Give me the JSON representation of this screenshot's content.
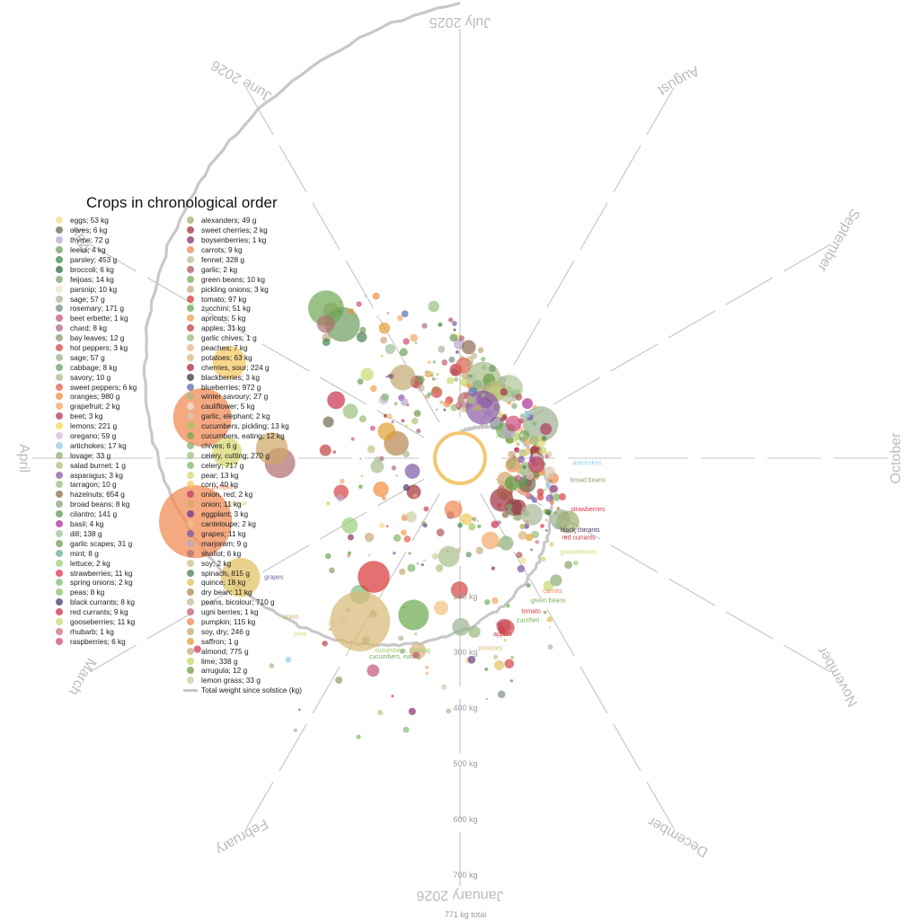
{
  "chart_data": {
    "type": "scatter",
    "title": "Crops in chronological order",
    "subtitle": "",
    "radial_axis_labels": [
      "200 kg",
      "300 kg",
      "400 kg",
      "500 kg",
      "600 kg",
      "700 kg",
      "771 kg total"
    ],
    "months": [
      "July 2025",
      "August",
      "September",
      "October",
      "November",
      "December",
      "January 2026",
      "February",
      "March",
      "April",
      "May",
      "June 2026"
    ],
    "legend_line_label": "Total weight since solstice (kg)",
    "cumulative_total_kg": 771,
    "legend": [
      {
        "label": "eggs; 53 kg",
        "color": "#f7dc8f"
      },
      {
        "label": "olives; 6 kg",
        "color": "#6e6a56"
      },
      {
        "label": "thyme; 72 g",
        "color": "#b9a8d2"
      },
      {
        "label": "leeks; 4 kg",
        "color": "#6e9d5e"
      },
      {
        "label": "parsley; 453 g",
        "color": "#3f8a48"
      },
      {
        "label": "broccoli; 6 kg",
        "color": "#2f6b3d"
      },
      {
        "label": "feijoas; 14 kg",
        "color": "#7ca56c"
      },
      {
        "label": "parsnip; 10 kg",
        "color": "#ece6cd"
      },
      {
        "label": "sage; 57 g",
        "color": "#a8b89a"
      },
      {
        "label": "rosemary; 171 g",
        "color": "#7c8f8a"
      },
      {
        "label": "beet erbette; 1 kg",
        "color": "#c4587a"
      },
      {
        "label": "chard; 8 kg",
        "color": "#b06a8a"
      },
      {
        "label": "bay leaves; 12 g",
        "color": "#8a9b6e"
      },
      {
        "label": "hot peppers; 3 kg",
        "color": "#d64545"
      },
      {
        "label": "sage; 57 g",
        "color": "#9bb090"
      },
      {
        "label": "cabbage; 8 kg",
        "color": "#6e9d6e"
      },
      {
        "label": "savory; 10 g",
        "color": "#a6bd8c"
      },
      {
        "label": "sweet peppers; 6 kg",
        "color": "#e0604f"
      },
      {
        "label": "oranges; 980 g",
        "color": "#f08c3c"
      },
      {
        "label": "grapefruit; 2 kg",
        "color": "#f4a866"
      },
      {
        "label": "beet; 3 kg",
        "color": "#b03a5e"
      },
      {
        "label": "lemons; 221 g",
        "color": "#f5d84a"
      },
      {
        "label": "oregano; 59 g",
        "color": "#d4b8de"
      },
      {
        "label": "artichokes; 17 kg",
        "color": "#94cde8"
      },
      {
        "label": "lovage; 33 g",
        "color": "#8fb07a"
      },
      {
        "label": "salad burnet; 1 g",
        "color": "#b2c27c"
      },
      {
        "label": "asparagus; 3 kg",
        "color": "#8c5aa6"
      },
      {
        "label": "tarragon; 10 g",
        "color": "#9cbc84"
      },
      {
        "label": "hazelnuts; 654 g",
        "color": "#8f6b4e"
      },
      {
        "label": "broad beans; 8 kg",
        "color": "#8fa06e"
      },
      {
        "label": "cilantro; 141 g",
        "color": "#5f9a5a"
      },
      {
        "label": "basil; 4 kg",
        "color": "#a8329a"
      },
      {
        "label": "dill; 138 g",
        "color": "#9ac09a"
      },
      {
        "label": "garlic scapes; 31 g",
        "color": "#6e9a52"
      },
      {
        "label": "mint; 8 g",
        "color": "#66b28a"
      },
      {
        "label": "lettuce; 2 kg",
        "color": "#9ad07a"
      },
      {
        "label": "strawberries; 11 kg",
        "color": "#e2364a"
      },
      {
        "label": "spring onions; 2 kg",
        "color": "#7fbc7a"
      },
      {
        "label": "peas; 8 kg",
        "color": "#8cc06a"
      },
      {
        "label": "black currants; 8 kg",
        "color": "#4a3a6a"
      },
      {
        "label": "red currants; 9 kg",
        "color": "#c8304a"
      },
      {
        "label": "gooseberries; 11 kg",
        "color": "#c6d872"
      },
      {
        "label": "rhubarb; 1 kg",
        "color": "#d07080"
      },
      {
        "label": "raspberries; 6 kg",
        "color": "#d04a7a"
      },
      {
        "label": "alexanders; 49 g",
        "color": "#a0b070"
      },
      {
        "label": "sweet cherries; 2 kg",
        "color": "#a0303e"
      },
      {
        "label": "boysenberries; 1 kg",
        "color": "#8a2f6a"
      },
      {
        "label": "carrots; 9 kg",
        "color": "#ec8a4a"
      },
      {
        "label": "fennel; 328 g",
        "color": "#b0c49a"
      },
      {
        "label": "garlic; 2 kg",
        "color": "#b05a5a"
      },
      {
        "label": "green beans; 10 kg",
        "color": "#78b058"
      },
      {
        "label": "pickling onions; 3 kg",
        "color": "#c8a888"
      },
      {
        "label": "tomato; 97 kg",
        "color": "#d83a3a"
      },
      {
        "label": "zucchini; 51 kg",
        "color": "#6eaa52"
      },
      {
        "label": "apricots; 5 kg",
        "color": "#f0a050"
      },
      {
        "label": "apples; 31 kg",
        "color": "#c04040"
      },
      {
        "label": "garlic chives; 1 g",
        "color": "#9ab87a"
      },
      {
        "label": "peaches; 7 kg",
        "color": "#f0b080"
      },
      {
        "label": "potatoes; 63 kg",
        "color": "#d8b878"
      },
      {
        "label": "cherries, sour; 224 g",
        "color": "#b0283a"
      },
      {
        "label": "blackberries; 3 kg",
        "color": "#4a3048"
      },
      {
        "label": "blueberries; 972 g",
        "color": "#5a6ea8"
      },
      {
        "label": "winter savoury; 27 g",
        "color": "#a8bc88"
      },
      {
        "label": "cauliflower; 5 kg",
        "color": "#ece8d8"
      },
      {
        "label": "garlic, elephant; 2 kg",
        "color": "#d8c8b0"
      },
      {
        "label": "cucumbers, pickling; 13 kg",
        "color": "#9cc86a"
      },
      {
        "label": "cucumbers, eating; 12 kg",
        "color": "#7aa85a"
      },
      {
        "label": "chives; 6 g",
        "color": "#8aae78"
      },
      {
        "label": "celery, cutting; 270 g",
        "color": "#98c080"
      },
      {
        "label": "celery; 717 g",
        "color": "#7eb86a"
      },
      {
        "label": "pear; 13 kg",
        "color": "#d8d870"
      },
      {
        "label": "corn; 40 kg",
        "color": "#f4c860"
      },
      {
        "label": "onion, red; 2 kg",
        "color": "#c0406a"
      },
      {
        "label": "onion; 11 kg",
        "color": "#d0a868"
      },
      {
        "label": "eggplant; 3 kg",
        "color": "#6a3a8a"
      },
      {
        "label": "canteloupe; 2 kg",
        "color": "#f0c080"
      },
      {
        "label": "grapes; 11 kg",
        "color": "#7a5aa0"
      },
      {
        "label": "marjoram; 9 g",
        "color": "#b8a8c8"
      },
      {
        "label": "shallot; 6 kg",
        "color": "#b07070"
      },
      {
        "label": "soy; 2 kg",
        "color": "#c8c080"
      },
      {
        "label": "spinach; 815 g",
        "color": "#4a8050"
      },
      {
        "label": "quince; 18 kg",
        "color": "#e0c060"
      },
      {
        "label": "dry bean; 11 kg",
        "color": "#b8864e"
      },
      {
        "label": "peans, bicolour; 710 g",
        "color": "#c8b898"
      },
      {
        "label": "ugni berries; 1 kg",
        "color": "#c06070"
      },
      {
        "label": "pumpkin; 115 kg",
        "color": "#f08850"
      },
      {
        "label": "soy, dry; 246 g",
        "color": "#c0a870"
      },
      {
        "label": "saffron; 1 g",
        "color": "#e0a030"
      },
      {
        "label": "almond; 775 g",
        "color": "#c8a880"
      },
      {
        "label": "lime; 338 g",
        "color": "#c0d860"
      },
      {
        "label": "arrugula; 12 g",
        "color": "#70a050"
      },
      {
        "label": "lemon grass; 33 g",
        "color": "#c8d0a0"
      }
    ],
    "crop_labels": [
      {
        "text": "cucumbers, eating",
        "color": "#7aa85a"
      },
      {
        "text": "cucumbers, pickling",
        "color": "#9cc86a"
      },
      {
        "text": "potatoes",
        "color": "#d8b878"
      },
      {
        "text": "apples",
        "color": "#c04040"
      },
      {
        "text": "zucchini",
        "color": "#6eaa52"
      },
      {
        "text": "tomato",
        "color": "#d83a3a"
      },
      {
        "text": "green beans",
        "color": "#78b058"
      },
      {
        "text": "carrots",
        "color": "#ec8a4a"
      },
      {
        "text": "gooseberries",
        "color": "#c6d872"
      },
      {
        "text": "red currants",
        "color": "#c8304a"
      },
      {
        "text": "black currants",
        "color": "#4a3a6a"
      },
      {
        "text": "strawberries",
        "color": "#e2364a"
      },
      {
        "text": "broad beans",
        "color": "#8fa06e"
      },
      {
        "text": "artichokes",
        "color": "#94cde8"
      },
      {
        "text": "pear",
        "color": "#d8d870"
      },
      {
        "text": "onion",
        "color": "#d0a868"
      },
      {
        "text": "grapes",
        "color": "#7a5aa0"
      },
      {
        "text": "quince",
        "color": "#e0c060"
      },
      {
        "text": "pumpkin",
        "color": "#f08850"
      }
    ],
    "bubbles": [
      {
        "crop": "pumpkin",
        "month": 8.55,
        "radius_kg": 440,
        "weight_kg": 12.0,
        "color": "#f08850"
      },
      {
        "crop": "pumpkin",
        "month": 9.3,
        "radius_kg": 420,
        "weight_kg": 7.0,
        "color": "#f08850"
      },
      {
        "crop": "potatoes",
        "month": 7.05,
        "radius_kg": 295,
        "weight_kg": 7.5,
        "color": "#d8b878"
      },
      {
        "crop": "quince",
        "month": 8.05,
        "radius_kg": 400,
        "weight_kg": 2.5,
        "color": "#e0c060"
      },
      {
        "crop": "corn",
        "month": 9.75,
        "radius_kg": 400,
        "weight_kg": 1.6,
        "color": "#f4c860"
      },
      {
        "crop": "pear",
        "month": 9.05,
        "radius_kg": 370,
        "weight_kg": 1.1,
        "color": "#d8d870"
      },
      {
        "crop": "shallot",
        "month": 8.95,
        "radius_kg": 275,
        "weight_kg": 1.2,
        "color": "#b07070"
      },
      {
        "crop": "onion",
        "month": 9.1,
        "radius_kg": 290,
        "weight_kg": 1.4,
        "color": "#d0a868"
      },
      {
        "crop": "zucchini",
        "month": 6.55,
        "radius_kg": 245,
        "weight_kg": 1.2,
        "color": "#6eaa52"
      },
      {
        "crop": "tomato",
        "month": 7.2,
        "radius_kg": 215,
        "weight_kg": 1.4,
        "color": "#d83a3a"
      }
    ]
  }
}
